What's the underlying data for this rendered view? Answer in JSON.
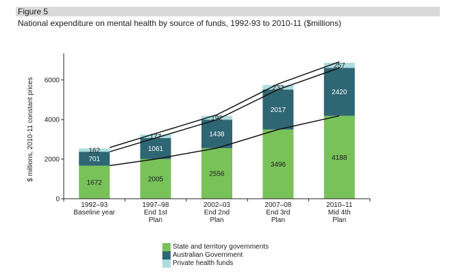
{
  "figure_label": "Figure 5",
  "figure_title": "National expenditure on mental health by source of funds, 1992-93 to 2010-11 ($millions)",
  "colors": {
    "state": "#79c25a",
    "australian": "#2f6673",
    "private": "#acdcdf",
    "band": "#dadada"
  },
  "chart_data": {
    "type": "bar",
    "stacked": true,
    "title": "",
    "ylabel": "$ millions, 2010-11 constant prices",
    "xlabel": "",
    "ylim": [
      0,
      7000
    ],
    "yticks": [
      0,
      2000,
      4000,
      6000
    ],
    "grid": false,
    "legend_position": "bottom",
    "categories": [
      [
        "1992–93",
        "Baseline year"
      ],
      [
        "1997–98",
        "End 1st",
        "Plan"
      ],
      [
        "2002–03",
        "End 2nd",
        "Plan"
      ],
      [
        "2007–08",
        "End 3rd",
        "Plan"
      ],
      [
        "2010–11",
        "Mid 4th",
        "Plan"
      ]
    ],
    "series": [
      {
        "name": "State and territory governments",
        "values": [
          1672,
          2005,
          2556,
          3496,
          4188
        ]
      },
      {
        "name": "Australian Government",
        "values": [
          701,
          1061,
          1438,
          2017,
          2420
        ]
      },
      {
        "name": "Private health funds",
        "values": [
          162,
          177,
          192,
          232,
          257
        ]
      }
    ]
  }
}
